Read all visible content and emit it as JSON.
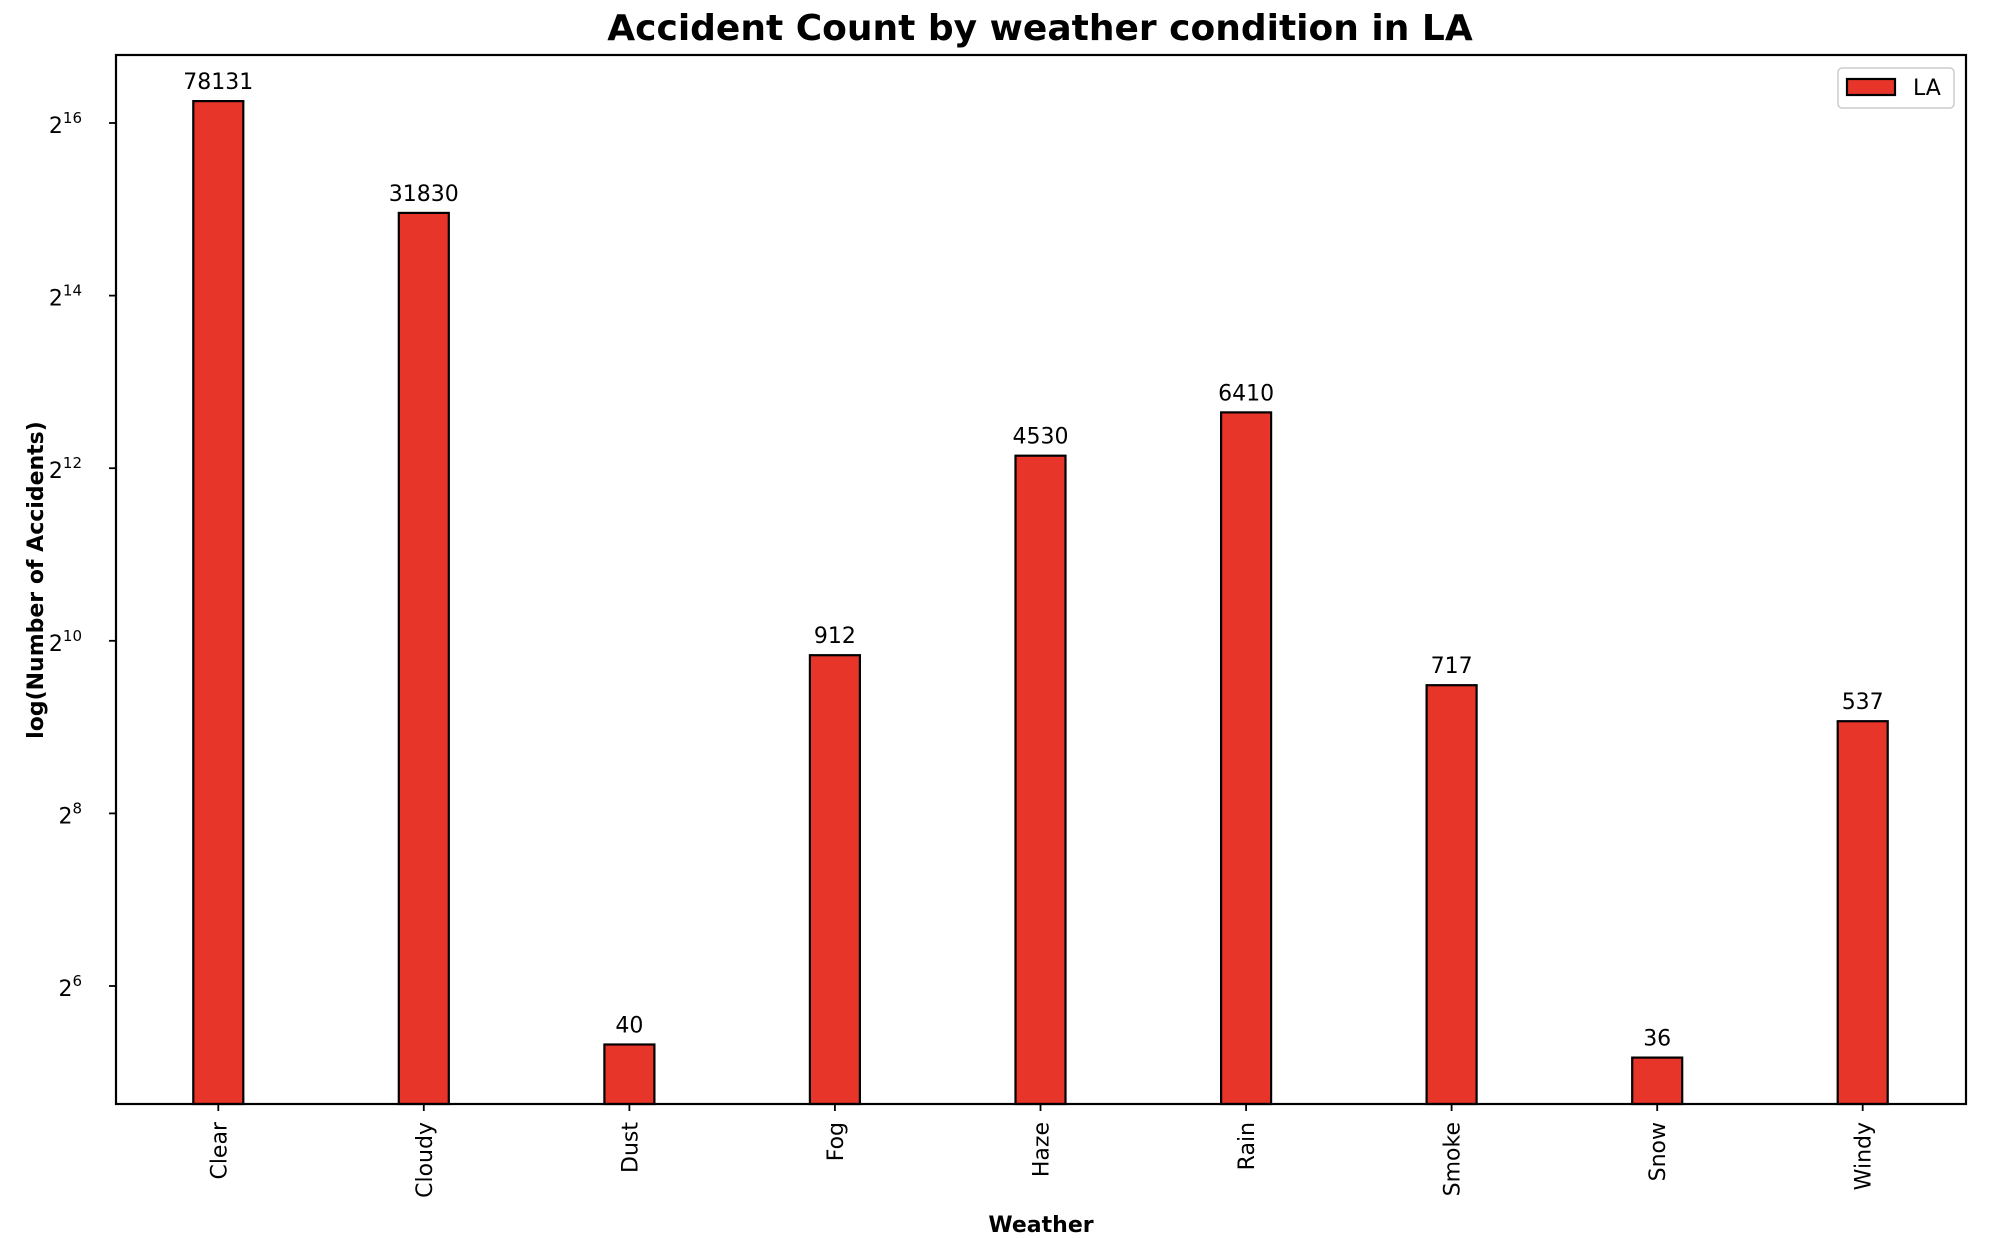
{
  "chart_data": {
    "type": "bar",
    "title": "Accident Count by weather condition in LA",
    "xlabel": "Weather",
    "ylabel": "log(Number of Accidents)",
    "yscale": "log2",
    "categories": [
      "Clear",
      "Cloudy",
      "Dust",
      "Fog",
      "Haze",
      "Rain",
      "Smoke",
      "Snow",
      "Windy"
    ],
    "series": [
      {
        "name": "LA",
        "color": "#e8352a",
        "values": [
          78131,
          31830,
          40,
          912,
          4530,
          6410,
          717,
          36,
          537
        ]
      }
    ],
    "yticks": [
      {
        "base": "2",
        "exp": "6",
        "value": 64
      },
      {
        "base": "2",
        "exp": "8",
        "value": 256
      },
      {
        "base": "2",
        "exp": "10",
        "value": 1024
      },
      {
        "base": "2",
        "exp": "12",
        "value": 4096
      },
      {
        "base": "2",
        "exp": "14",
        "value": 16384
      },
      {
        "base": "2",
        "exp": "16",
        "value": 65536
      }
    ],
    "legend_position": "top-right",
    "grid": false
  }
}
